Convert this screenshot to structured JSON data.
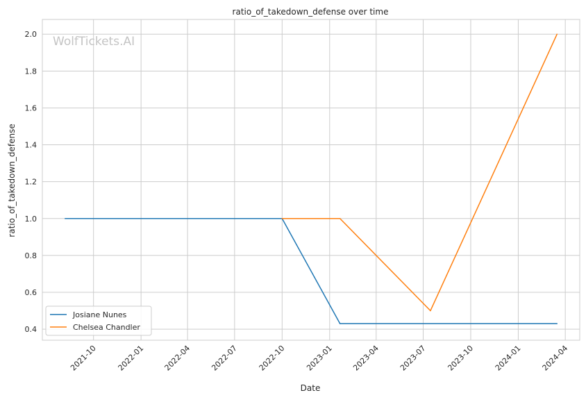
{
  "chart_data": {
    "type": "line",
    "title": "ratio_of_takedown_defense over time",
    "xlabel": "Date",
    "ylabel": "ratio_of_takedown_defense",
    "watermark": "WolfTickets.AI",
    "x_tick_labels": [
      "2021-10",
      "2022-01",
      "2022-04",
      "2022-07",
      "2022-10",
      "2023-01",
      "2023-04",
      "2023-07",
      "2023-10",
      "2024-01",
      "2024-04"
    ],
    "y_tick_labels": [
      "0.4",
      "0.6",
      "0.8",
      "1.0",
      "1.2",
      "1.4",
      "1.6",
      "1.8",
      "2.0"
    ],
    "xlim": [
      "2021-06-24",
      "2024-04-29"
    ],
    "ylim": [
      0.34,
      2.08
    ],
    "grid": true,
    "legend_position": "lower-left",
    "series": [
      {
        "name": "Josiane Nunes",
        "color": "#1f77b4",
        "points": [
          {
            "x": "2021-08-07",
            "y": 1.0
          },
          {
            "x": "2022-10-01",
            "y": 1.0
          },
          {
            "x": "2023-01-21",
            "y": 0.43
          },
          {
            "x": "2024-03-16",
            "y": 0.43
          }
        ]
      },
      {
        "name": "Chelsea Chandler",
        "color": "#ff7f0e",
        "points": [
          {
            "x": "2022-10-01",
            "y": 1.0
          },
          {
            "x": "2023-01-21",
            "y": 1.0
          },
          {
            "x": "2023-07-15",
            "y": 0.5
          },
          {
            "x": "2024-03-16",
            "y": 2.0
          }
        ]
      }
    ]
  }
}
